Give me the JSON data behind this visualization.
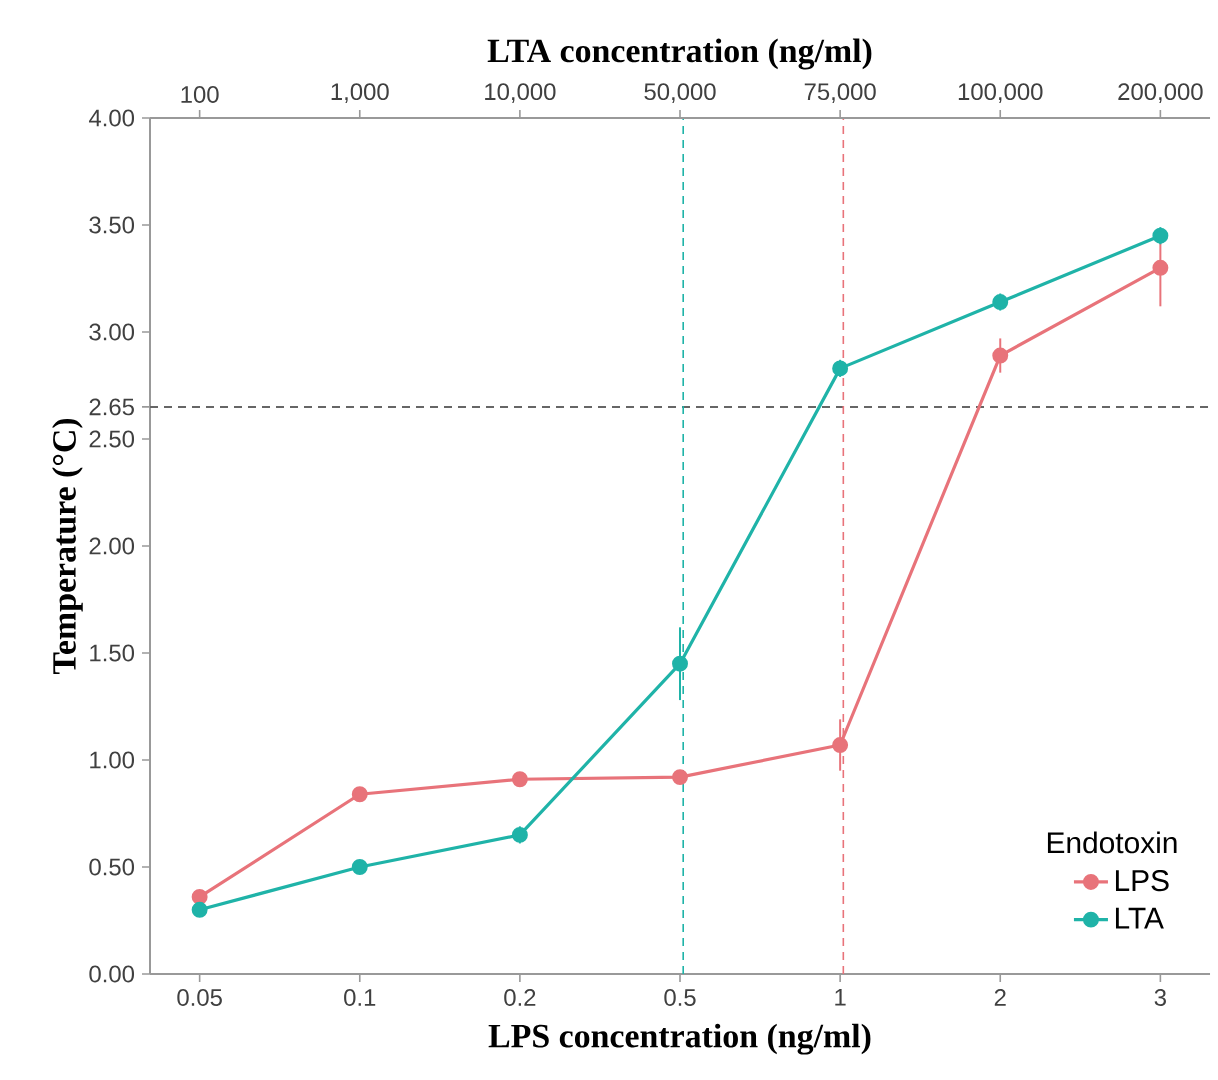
{
  "chart_data": {
    "type": "line",
    "xlabel": "LPS concentration (ng/ml)",
    "x2label": "LTA concentration (ng/ml)",
    "ylabel": "Temperature (°C)",
    "legend_title": "Endotoxin",
    "categories": [
      "0.05",
      "0.1",
      "0.2",
      "0.5",
      "1",
      "2",
      "3"
    ],
    "annotations": [
      "100",
      "1,000",
      "10,000",
      "50,000",
      "75,000",
      "100,000",
      "200,000"
    ],
    "ylim": [
      0,
      4
    ],
    "yticks": [
      {
        "value": 0,
        "label": "0.00"
      },
      {
        "value": 0.5,
        "label": "0.50"
      },
      {
        "value": 1,
        "label": "1.00"
      },
      {
        "value": 1.5,
        "label": "1.50"
      },
      {
        "value": 2,
        "label": "2.00"
      },
      {
        "value": 2.5,
        "label": "2.50"
      },
      {
        "value": 2.65,
        "label": "2.65"
      },
      {
        "value": 3,
        "label": "3.00"
      },
      {
        "value": 3.5,
        "label": "3.50"
      },
      {
        "value": 4,
        "label": "4.00"
      }
    ],
    "series": [
      {
        "name": "LPS",
        "color": "#e8737a",
        "values": [
          0.36,
          0.84,
          0.91,
          0.92,
          1.07,
          2.89,
          3.3
        ],
        "errors": [
          0.03,
          0.03,
          0.02,
          0.02,
          0.12,
          0.08,
          0.18
        ]
      },
      {
        "name": "LTA",
        "color": "#1fb3a8",
        "values": [
          0.3,
          0.5,
          0.65,
          1.45,
          2.83,
          3.14,
          3.45
        ],
        "errors": [
          0.02,
          0.02,
          0.04,
          0.17,
          0.04,
          0.04,
          0.04
        ]
      }
    ],
    "ref_lines": [
      {
        "axis": "y",
        "value": 2.65,
        "color": "#666666",
        "line_style": "dashed"
      },
      {
        "axis": "x",
        "value": "0.5",
        "color": "#1fb3a8",
        "line_style": "dashed"
      },
      {
        "axis": "x",
        "value": "1",
        "color": "#e8737a",
        "line_style": "dashed"
      }
    ],
    "marker": "circle",
    "line_style": "solid",
    "grid": false,
    "legend": "bottom right"
  }
}
